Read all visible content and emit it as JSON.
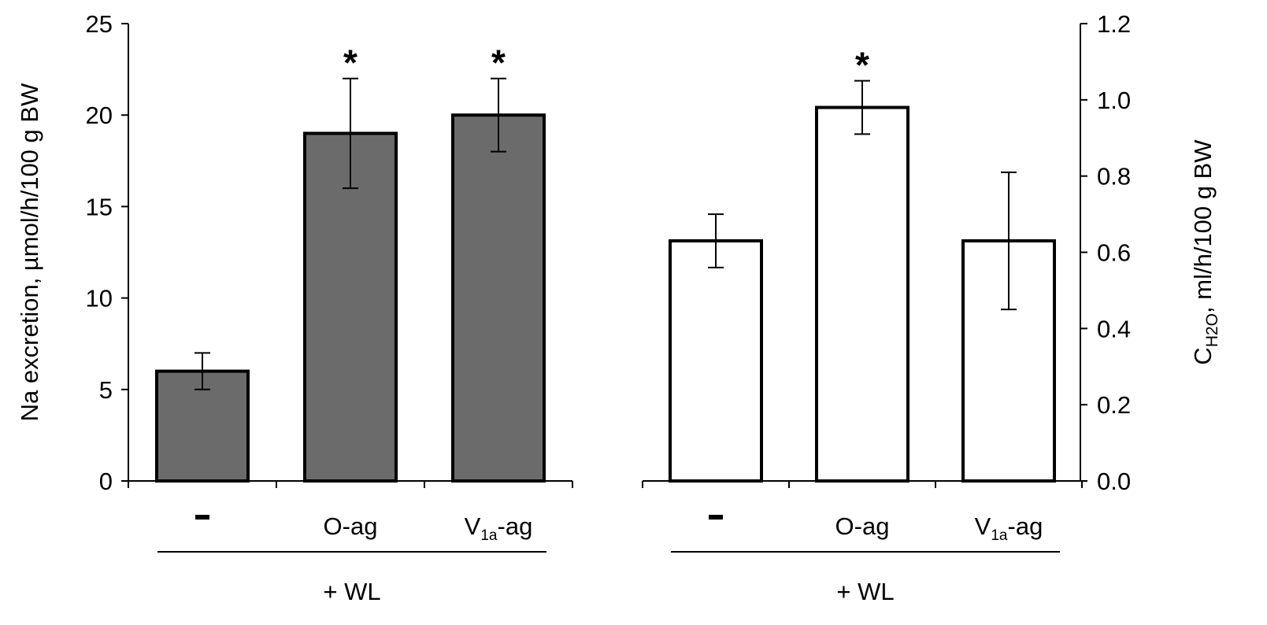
{
  "chart_data": [
    {
      "type": "bar",
      "panel": "left",
      "categories": [
        "-",
        "O-ag",
        "V1a-ag"
      ],
      "category_labels": [
        {
          "main": "-",
          "sub": "",
          "suffix": ""
        },
        {
          "main": "O-ag",
          "sub": "",
          "suffix": ""
        },
        {
          "main": "V",
          "sub": "1a",
          "suffix": "-ag"
        }
      ],
      "values": [
        6,
        19,
        20
      ],
      "errors": [
        1,
        3,
        2
      ],
      "significance": [
        "",
        "*",
        "*"
      ],
      "ylabel": "Na excretion, µmol/h/100 g BW",
      "ylim": [
        0,
        25
      ],
      "yticks": [
        0,
        5,
        10,
        15,
        20,
        25
      ],
      "ytick_labels": [
        "0",
        "5",
        "10",
        "15",
        "20",
        "25"
      ],
      "group_label": "+ WL",
      "bar_color": "#6b6b6b",
      "axis_side": "left"
    },
    {
      "type": "bar",
      "panel": "right",
      "categories": [
        "-",
        "O-ag",
        "V1a-ag"
      ],
      "category_labels": [
        {
          "main": "-",
          "sub": "",
          "suffix": ""
        },
        {
          "main": "O-ag",
          "sub": "",
          "suffix": ""
        },
        {
          "main": "V",
          "sub": "1a",
          "suffix": "-ag"
        }
      ],
      "values": [
        0.63,
        0.98,
        0.63
      ],
      "errors": [
        0.07,
        0.07,
        0.18
      ],
      "significance": [
        "",
        "*",
        ""
      ],
      "ylabel_main": "C",
      "ylabel_sub": "H2O",
      "ylabel_rest": ", ml/h/100 g BW",
      "ylim": [
        0,
        1.2
      ],
      "yticks": [
        0,
        0.2,
        0.4,
        0.6,
        0.8,
        1.0,
        1.2
      ],
      "ytick_labels": [
        "0.0",
        "0.2",
        "0.4",
        "0.6",
        "0.8",
        "1.0",
        "1.2"
      ],
      "group_label": "+ WL",
      "bar_color": "#ffffff",
      "axis_side": "right"
    }
  ]
}
